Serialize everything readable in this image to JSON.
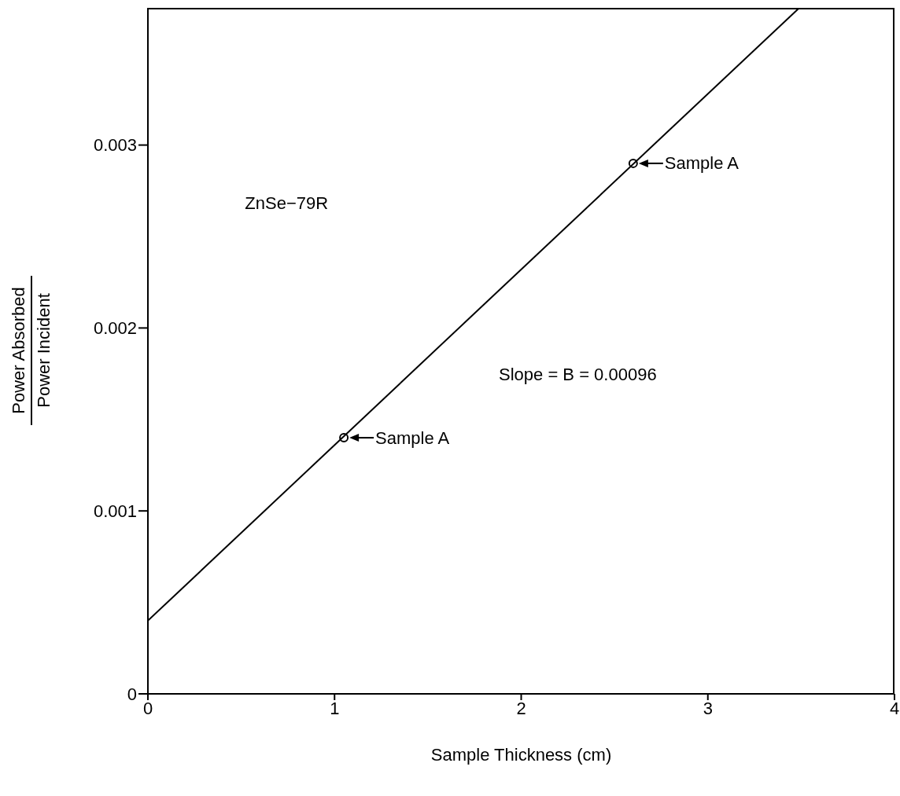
{
  "chart_data": {
    "type": "line",
    "xlabel": "Sample Thickness (cm)",
    "ylabel": "Power Absorbed\nPower Incident",
    "series": [
      {
        "color": "#000000",
        "x": [
          0,
          3.49
        ],
        "values": [
          0.0004,
          0.00375
        ],
        "marker": "none"
      },
      {
        "type": "scatter",
        "color": "#000000",
        "x": [
          1.05,
          2.6
        ],
        "values": [
          0.0014,
          0.0029
        ],
        "marker": "circle"
      }
    ],
    "xlim": [
      0,
      4
    ],
    "xticks": [
      0,
      1,
      2,
      3,
      4
    ],
    "ylim": [
      0,
      0.00375
    ],
    "yticks": [
      0,
      0.001,
      0.002,
      0.003
    ],
    "grid": false,
    "legend": false,
    "line_style": "solid",
    "annotations": [
      {
        "text": "Sample A",
        "x": 1.05,
        "y": 0.0014
      },
      {
        "text": "Sample A",
        "x": 2.6,
        "y": 0.0029
      },
      "ZnSe−79R",
      "Slope = B = 0.00096"
    ]
  }
}
